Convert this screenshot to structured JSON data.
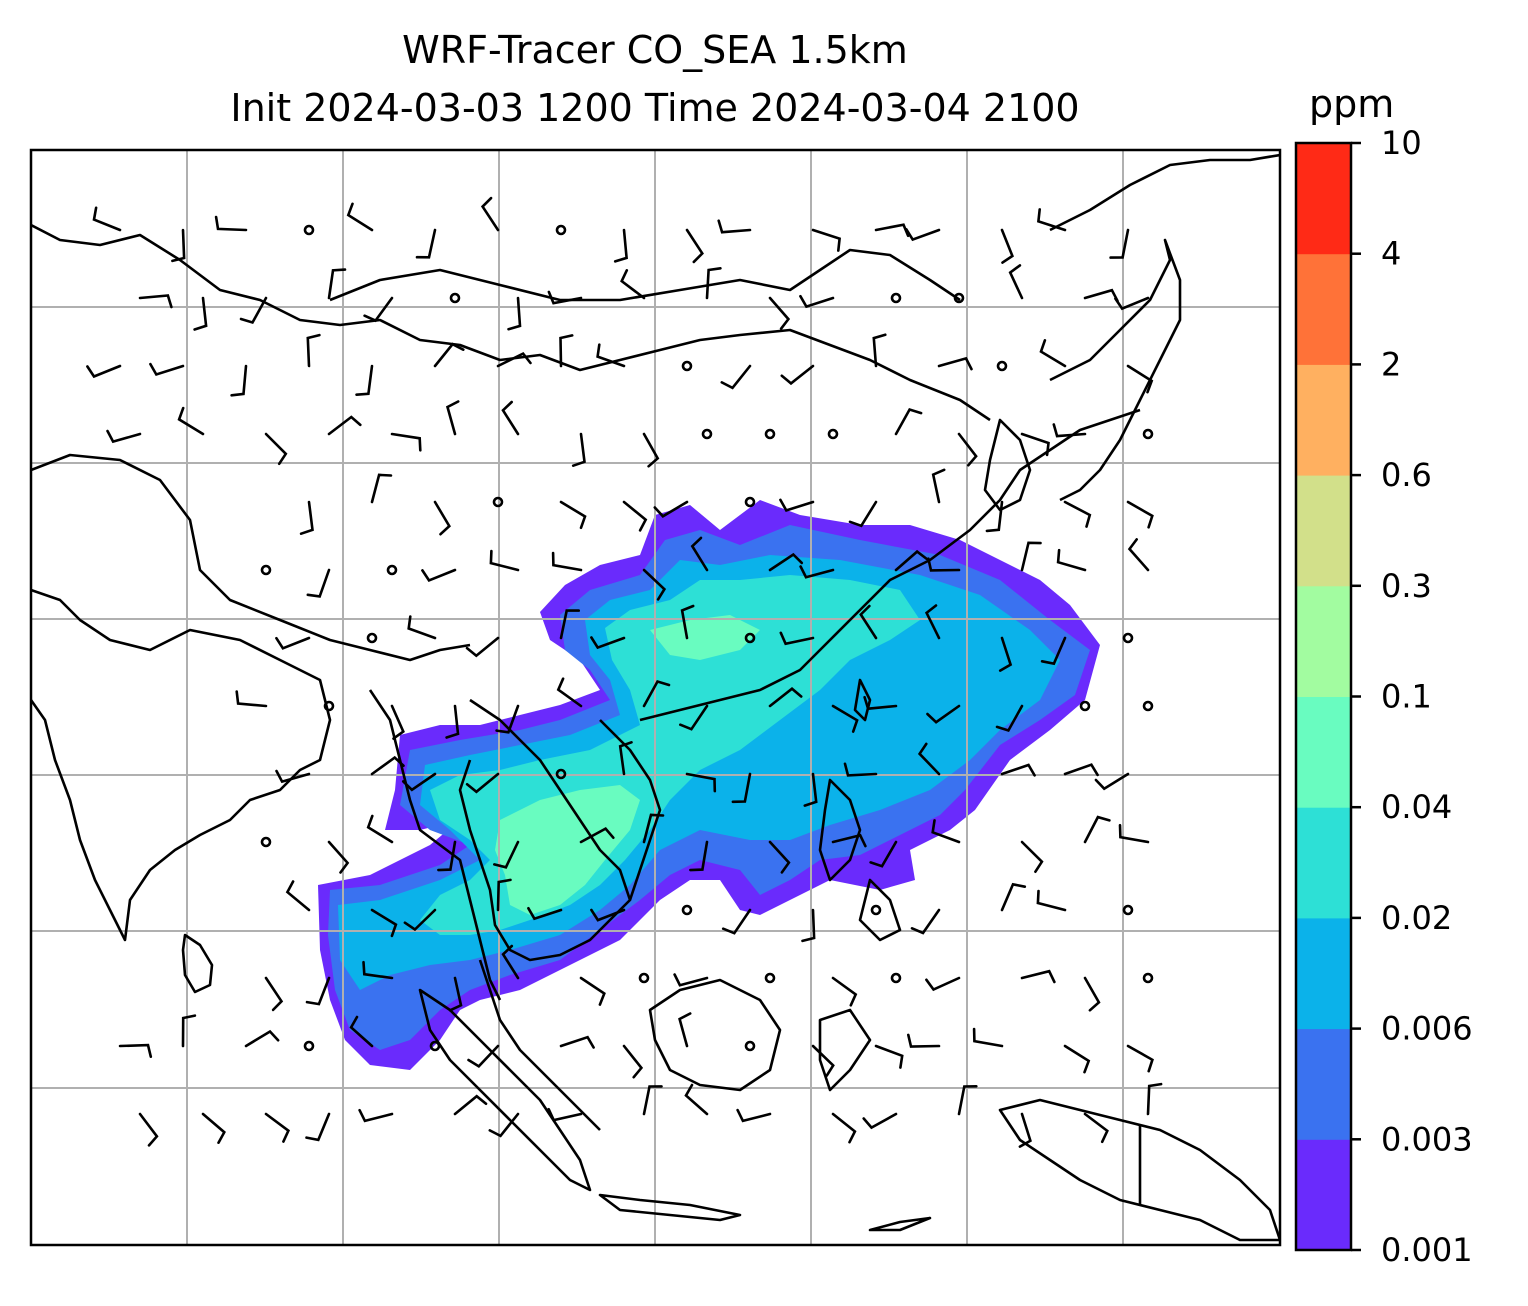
{
  "title": {
    "line1": "WRF-Tracer CO_SEA 1.5km",
    "line2": "Init 2024-03-03 1200 Time 2024-03-04 2100"
  },
  "colorbar": {
    "unit": "ppm",
    "levels": [
      "0.001",
      "0.003",
      "0.006",
      "0.02",
      "0.04",
      "0.1",
      "0.3",
      "0.6",
      "2",
      "4",
      "10"
    ],
    "colors": [
      "#6a2bfc",
      "#3a72f0",
      "#0bb2ea",
      "#2de0d6",
      "#69fcc0",
      "#a2fca0",
      "#d2e08a",
      "#ffb060",
      "#ff7238",
      "#ff2a16"
    ]
  },
  "map": {
    "grid_color": "#b0b0b0",
    "coastline_color": "#000000"
  }
}
